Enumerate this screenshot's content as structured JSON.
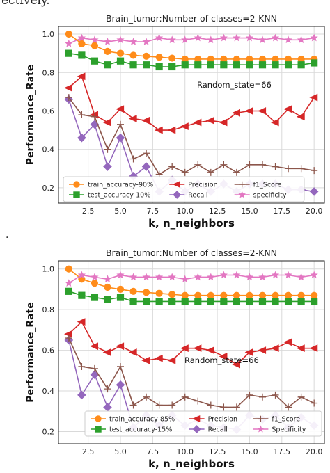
{
  "page": {
    "top_fragment": "ectively.",
    "mid_fragment": "."
  },
  "chart_data": [
    {
      "type": "line",
      "title": "Brain_tumor:Number of classes=2-KNN",
      "xlabel": "k, n_neighbors",
      "ylabel": "Performance_Rate",
      "annotation": "Random_state=66",
      "xlim": [
        0.2,
        20.8
      ],
      "ylim": [
        0.12,
        1.04
      ],
      "xticks": [
        "2.5",
        "5.0",
        "7.5",
        "10.0",
        "12.5",
        "15.0",
        "17.5",
        "20.0"
      ],
      "yticks": [
        "0.2",
        "0.4",
        "0.6",
        "0.8",
        "1.0"
      ],
      "grid": true,
      "legend_position": "bottom-center",
      "x": [
        1,
        2,
        3,
        4,
        5,
        6,
        7,
        8,
        9,
        10,
        11,
        12,
        13,
        14,
        15,
        16,
        17,
        18,
        19,
        20
      ],
      "series": [
        {
          "name": "train_accuracy-90%",
          "color": "#ff8c1a",
          "marker": "circle",
          "values": [
            1.0,
            0.95,
            0.94,
            0.91,
            0.9,
            0.89,
            0.885,
            0.88,
            0.875,
            0.87,
            0.87,
            0.87,
            0.87,
            0.87,
            0.87,
            0.87,
            0.87,
            0.87,
            0.87,
            0.87
          ]
        },
        {
          "name": "test_accuracy-10%",
          "color": "#2ca02c",
          "marker": "square",
          "values": [
            0.9,
            0.89,
            0.86,
            0.84,
            0.86,
            0.84,
            0.84,
            0.83,
            0.83,
            0.84,
            0.84,
            0.84,
            0.84,
            0.84,
            0.84,
            0.84,
            0.84,
            0.84,
            0.84,
            0.85
          ]
        },
        {
          "name": "Precision",
          "color": "#d62728",
          "marker": "triangle-left",
          "values": [
            0.72,
            0.78,
            0.58,
            0.54,
            0.61,
            0.56,
            0.55,
            0.5,
            0.5,
            0.52,
            0.54,
            0.55,
            0.54,
            0.59,
            0.6,
            0.6,
            0.54,
            0.61,
            0.57,
            0.67
          ]
        },
        {
          "name": "Recall",
          "color": "#9467bd",
          "marker": "diamond",
          "values": [
            0.66,
            0.46,
            0.53,
            0.31,
            0.46,
            0.26,
            0.31,
            0.18,
            0.24,
            0.18,
            0.22,
            0.18,
            0.22,
            0.18,
            0.22,
            0.22,
            0.22,
            0.19,
            0.19,
            0.18
          ]
        },
        {
          "name": "f1_Score",
          "color": "#8c564b",
          "marker": "plus",
          "values": [
            0.67,
            0.58,
            0.57,
            0.4,
            0.53,
            0.35,
            0.38,
            0.27,
            0.31,
            0.28,
            0.32,
            0.28,
            0.32,
            0.28,
            0.32,
            0.32,
            0.31,
            0.3,
            0.3,
            0.29
          ]
        },
        {
          "name": "specificity",
          "color": "#e377c2",
          "marker": "star",
          "values": [
            0.95,
            0.98,
            0.97,
            0.96,
            0.97,
            0.96,
            0.96,
            0.98,
            0.97,
            0.97,
            0.98,
            0.97,
            0.98,
            0.98,
            0.98,
            0.97,
            0.98,
            0.97,
            0.97,
            0.98
          ]
        }
      ]
    },
    {
      "type": "line",
      "title": "Brain_tumor:Number of classes=2-KNN",
      "xlabel": "k, n_neighbors",
      "ylabel": "Performance_Rate",
      "annotation": "Random_state=66",
      "xlim": [
        0.2,
        20.8
      ],
      "ylim": [
        0.14,
        1.04
      ],
      "xticks": [
        "2.5",
        "5.0",
        "7.5",
        "10.0",
        "12.5",
        "15.0",
        "17.5",
        "20.0"
      ],
      "yticks": [
        "0.2",
        "0.4",
        "0.6",
        "0.8",
        "1.0"
      ],
      "grid": true,
      "legend_position": "bottom-center",
      "x": [
        1,
        2,
        3,
        4,
        5,
        6,
        7,
        8,
        9,
        10,
        11,
        12,
        13,
        14,
        15,
        16,
        17,
        18,
        19,
        20
      ],
      "series": [
        {
          "name": "train_accuracy-85%",
          "color": "#ff8c1a",
          "marker": "circle",
          "values": [
            1.0,
            0.95,
            0.93,
            0.91,
            0.9,
            0.89,
            0.885,
            0.88,
            0.875,
            0.87,
            0.87,
            0.87,
            0.87,
            0.87,
            0.87,
            0.87,
            0.87,
            0.87,
            0.87,
            0.87
          ]
        },
        {
          "name": "test_accuracy-15%",
          "color": "#2ca02c",
          "marker": "square",
          "values": [
            0.89,
            0.87,
            0.86,
            0.85,
            0.86,
            0.84,
            0.84,
            0.84,
            0.84,
            0.84,
            0.84,
            0.84,
            0.84,
            0.84,
            0.84,
            0.84,
            0.84,
            0.84,
            0.84,
            0.84
          ]
        },
        {
          "name": "Precision",
          "color": "#d62728",
          "marker": "triangle-left",
          "values": [
            0.68,
            0.74,
            0.62,
            0.59,
            0.62,
            0.59,
            0.55,
            0.56,
            0.55,
            0.61,
            0.61,
            0.6,
            0.57,
            0.53,
            0.59,
            0.6,
            0.61,
            0.64,
            0.61,
            0.61
          ]
        },
        {
          "name": "Recall",
          "color": "#9467bd",
          "marker": "diamond",
          "values": [
            0.65,
            0.38,
            0.48,
            0.32,
            0.43,
            0.22,
            0.28,
            0.23,
            0.28,
            0.23,
            0.26,
            0.23,
            0.22,
            0.21,
            0.28,
            0.26,
            0.28,
            0.22,
            0.27,
            0.23
          ]
        },
        {
          "name": "f1_Score",
          "color": "#8c564b",
          "marker": "plus",
          "values": [
            0.66,
            0.52,
            0.51,
            0.41,
            0.52,
            0.33,
            0.37,
            0.33,
            0.33,
            0.37,
            0.35,
            0.33,
            0.32,
            0.32,
            0.38,
            0.37,
            0.38,
            0.32,
            0.37,
            0.34
          ]
        },
        {
          "name": "Specificity",
          "color": "#e377c2",
          "marker": "star",
          "values": [
            0.93,
            0.97,
            0.96,
            0.95,
            0.97,
            0.96,
            0.96,
            0.96,
            0.96,
            0.95,
            0.96,
            0.96,
            0.97,
            0.97,
            0.96,
            0.96,
            0.97,
            0.97,
            0.96,
            0.97
          ]
        }
      ]
    }
  ]
}
